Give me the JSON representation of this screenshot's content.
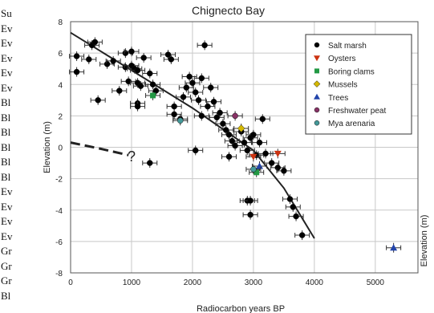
{
  "left_list": {
    "items": [
      "Su",
      "Ev",
      "Ev",
      "Ev",
      "Ev",
      "Ev",
      "Bl",
      "Bl",
      "Bl",
      "Bl",
      "Bl",
      "Bl",
      "Ev",
      "Ev",
      "Ev",
      "Ev",
      "Gr",
      "Gr",
      "Gr",
      "Bl"
    ]
  },
  "chart_data": {
    "type": "scatter",
    "title": "Chignecto Bay",
    "xlabel": "Radiocarbon years BP",
    "ylabel": "Elevation (m)",
    "ylabel_right": "Elevation (m)",
    "xlim": [
      0,
      5700
    ],
    "ylim": [
      -8,
      8
    ],
    "xticks": [
      0,
      1000,
      2000,
      3000,
      4000,
      5000
    ],
    "yticks": [
      -8,
      -6,
      -4,
      -2,
      0,
      2,
      4,
      6,
      8
    ],
    "grid": true,
    "legend_position": "top-right",
    "annotation": "?",
    "colors": {
      "salt_marsh": "#000000",
      "oysters": "#cc3311",
      "boring_clams": "#229944",
      "mussels": "#d4b800",
      "trees": "#2244aa",
      "freshwater_peat": "#883366",
      "mya_arenaria": "#449999"
    },
    "series": [
      {
        "name": "Salt marsh",
        "marker": "circle",
        "points": [
          [
            100,
            5.8
          ],
          [
            100,
            4.8
          ],
          [
            300,
            5.6
          ],
          [
            350,
            6.5
          ],
          [
            400,
            6.7
          ],
          [
            450,
            3.0
          ],
          [
            600,
            5.3
          ],
          [
            700,
            5.5
          ],
          [
            800,
            3.6
          ],
          [
            900,
            5.1
          ],
          [
            900,
            6.0
          ],
          [
            950,
            4.2
          ],
          [
            1000,
            6.1
          ],
          [
            1000,
            5.2
          ],
          [
            1050,
            5.0
          ],
          [
            1100,
            4.9
          ],
          [
            1100,
            4.1
          ],
          [
            1150,
            3.9
          ],
          [
            1100,
            2.8
          ],
          [
            1100,
            2.6
          ],
          [
            1200,
            5.7
          ],
          [
            1300,
            4.7
          ],
          [
            1350,
            4.0
          ],
          [
            1400,
            3.6
          ],
          [
            1600,
            5.9
          ],
          [
            1650,
            5.6
          ],
          [
            1700,
            2.6
          ],
          [
            1700,
            2.1
          ],
          [
            1800,
            1.8
          ],
          [
            1850,
            3.2
          ],
          [
            1900,
            3.8
          ],
          [
            1950,
            4.5
          ],
          [
            2000,
            4.1
          ],
          [
            2050,
            3.5
          ],
          [
            2100,
            3.0
          ],
          [
            2150,
            4.4
          ],
          [
            2150,
            2.0
          ],
          [
            2200,
            6.5
          ],
          [
            2250,
            2.6
          ],
          [
            2300,
            3.8
          ],
          [
            2350,
            2.9
          ],
          [
            2400,
            1.9
          ],
          [
            2450,
            2.2
          ],
          [
            2500,
            1.5
          ],
          [
            2550,
            1.1
          ],
          [
            2600,
            0.8
          ],
          [
            2650,
            0.4
          ],
          [
            2700,
            0.1
          ],
          [
            2800,
            1.0
          ],
          [
            2850,
            0.3
          ],
          [
            2900,
            -0.2
          ],
          [
            2950,
            0.6
          ],
          [
            3000,
            0.8
          ],
          [
            3050,
            -0.5
          ],
          [
            3100,
            0.3
          ],
          [
            3150,
            1.8
          ],
          [
            3200,
            -0.4
          ],
          [
            3300,
            -1.0
          ],
          [
            3400,
            -1.3
          ],
          [
            3500,
            -1.5
          ],
          [
            2050,
            -0.2
          ],
          [
            1300,
            -1.0
          ],
          [
            2600,
            -0.6
          ],
          [
            2900,
            -3.4
          ],
          [
            2950,
            -3.4
          ],
          [
            2950,
            -4.3
          ],
          [
            3600,
            -3.3
          ],
          [
            3650,
            -3.8
          ],
          [
            3700,
            -4.4
          ],
          [
            3800,
            -5.6
          ]
        ]
      },
      {
        "name": "Oysters",
        "marker": "triangle-down",
        "points": [
          [
            3000,
            -0.6
          ],
          [
            3400,
            -0.4
          ]
        ]
      },
      {
        "name": "Boring clams",
        "marker": "square",
        "points": [
          [
            1350,
            3.3
          ],
          [
            3050,
            -1.6
          ]
        ]
      },
      {
        "name": "Mussels",
        "marker": "diamond",
        "points": [
          [
            2800,
            1.2
          ]
        ]
      },
      {
        "name": "Trees",
        "marker": "triangle-up",
        "points": [
          [
            3100,
            -1.2
          ],
          [
            5300,
            -6.4
          ]
        ]
      },
      {
        "name": "Freshwater peat",
        "marker": "circle",
        "points": [
          [
            2700,
            2.0
          ]
        ]
      },
      {
        "name": "Mya arenaria",
        "marker": "circle",
        "points": [
          [
            1800,
            1.7
          ],
          [
            3000,
            -1.4
          ]
        ]
      }
    ],
    "trend_curve": [
      [
        0,
        7.3
      ],
      [
        1000,
        4.9
      ],
      [
        2000,
        2.5
      ],
      [
        3000,
        -0.2
      ],
      [
        3500,
        -2.6
      ],
      [
        4000,
        -5.8
      ]
    ],
    "dashed_curve": [
      [
        0,
        0.3
      ],
      [
        500,
        -0.1
      ],
      [
        950,
        -0.5
      ]
    ]
  }
}
